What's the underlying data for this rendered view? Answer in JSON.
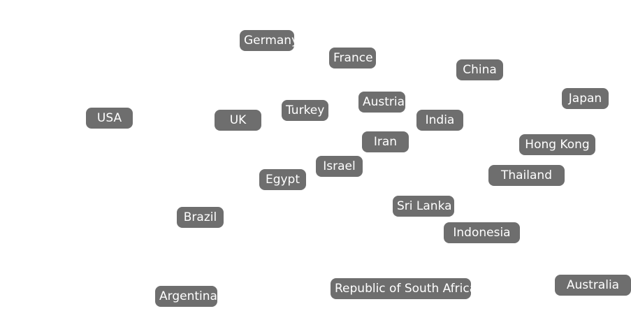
{
  "chip_color": "#6e6e6e",
  "chips": {
    "germany": "Germany",
    "france": "France",
    "china": "China",
    "japan": "Japan",
    "usa": "USA",
    "uk": "UK",
    "turkey": "Turkey",
    "austria": "Austria",
    "india": "India",
    "iran": "Iran",
    "hong_kong": "Hong Kong",
    "israel": "Israel",
    "egypt": "Egypt",
    "thailand": "Thailand",
    "brazil": "Brazil",
    "sri_lanka": "Sri Lanka",
    "indonesia": "Indonesia",
    "argentina": "Argentina",
    "republic_of_south_africa": "Republic of South Africa",
    "australia": "Australia"
  }
}
